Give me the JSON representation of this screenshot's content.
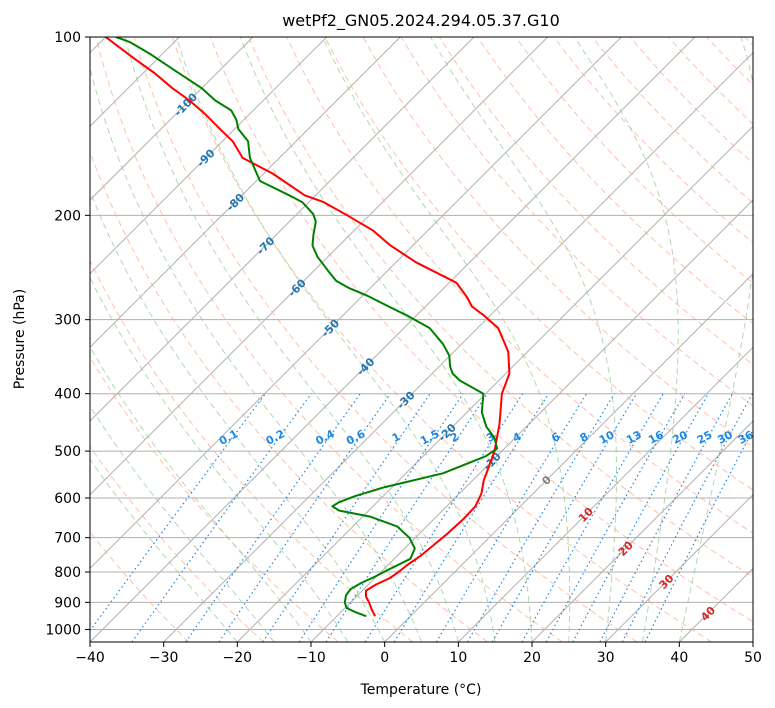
{
  "chart_data": {
    "type": "line",
    "title": "wetPf2_GN05.2024.294.05.37.G10",
    "xlabel": "Temperature (°C)",
    "ylabel": "Pressure (hPa)",
    "xlim": [
      -40,
      50
    ],
    "ylim": [
      1050,
      100
    ],
    "y_scale": "log",
    "x_ticks": [
      -40,
      -30,
      -20,
      -10,
      0,
      10,
      20,
      30,
      40,
      50
    ],
    "y_ticks": [
      100,
      200,
      300,
      400,
      500,
      600,
      700,
      800,
      900,
      1000
    ],
    "grid": true,
    "colors": {
      "temperature": "#ff0000",
      "dewpoint": "#008000",
      "isotherm": "#b0b0b0",
      "dry_adiabat": "#ffa07a",
      "moist_adiabat": "#90c990",
      "mixing_ratio": "#1e88e5",
      "isotherm_label": "#1f77b4",
      "mixing_label": "#1e88e5",
      "warm_label": "#d62728",
      "zero_label": "#808080"
    },
    "series": [
      {
        "key": "temperature",
        "points": [
          [
            -4.8,
            950
          ],
          [
            -6.2,
            925
          ],
          [
            -7.5,
            900
          ],
          [
            -8.7,
            880
          ],
          [
            -9.5,
            860
          ],
          [
            -9.0,
            840
          ],
          [
            -8.0,
            820
          ],
          [
            -7.6,
            800
          ],
          [
            -7.4,
            780
          ],
          [
            -6.8,
            750
          ],
          [
            -6.5,
            720
          ],
          [
            -6.2,
            690
          ],
          [
            -6.0,
            650
          ],
          [
            -6.1,
            620
          ],
          [
            -7.0,
            590
          ],
          [
            -8.5,
            560
          ],
          [
            -9.7,
            530
          ],
          [
            -11.0,
            500
          ],
          [
            -14.0,
            450
          ],
          [
            -17.8,
            400
          ],
          [
            -19.5,
            370
          ],
          [
            -22.6,
            340
          ],
          [
            -27.2,
            310
          ],
          [
            -30.9,
            295
          ],
          [
            -33.7,
            285
          ],
          [
            -35.6,
            275
          ],
          [
            -39.0,
            260
          ],
          [
            -47.3,
            240
          ],
          [
            -53.0,
            225
          ],
          [
            -57.5,
            212
          ],
          [
            -63.0,
            200
          ],
          [
            -68.0,
            190
          ],
          [
            -71.5,
            185
          ],
          [
            -78.8,
            170
          ],
          [
            -85.0,
            160
          ],
          [
            -88.6,
            150
          ],
          [
            -92.0,
            143
          ],
          [
            -96.0,
            135
          ],
          [
            -100.0,
            128
          ],
          [
            -104.0,
            122
          ],
          [
            -108.5,
            115
          ],
          [
            -113.0,
            109
          ],
          [
            -117.6,
            103
          ],
          [
            -120.0,
            100
          ]
        ]
      },
      {
        "key": "dewpoint",
        "points": [
          [
            -6.0,
            950
          ],
          [
            -8.0,
            935
          ],
          [
            -9.8,
            920
          ],
          [
            -10.8,
            900
          ],
          [
            -11.6,
            875
          ],
          [
            -11.8,
            855
          ],
          [
            -11.2,
            835
          ],
          [
            -10.2,
            815
          ],
          [
            -9.4,
            795
          ],
          [
            -7.8,
            760
          ],
          [
            -8.6,
            730
          ],
          [
            -10.8,
            700
          ],
          [
            -14.0,
            670
          ],
          [
            -19.0,
            645
          ],
          [
            -24.0,
            630
          ],
          [
            -25.5,
            620
          ],
          [
            -25.2,
            610
          ],
          [
            -23.8,
            595
          ],
          [
            -21.0,
            575
          ],
          [
            -15.0,
            545
          ],
          [
            -11.5,
            510
          ],
          [
            -11.0,
            495
          ],
          [
            -12.8,
            475
          ],
          [
            -15.4,
            455
          ],
          [
            -18.0,
            430
          ],
          [
            -20.3,
            400
          ],
          [
            -25.3,
            380
          ],
          [
            -27.2,
            370
          ],
          [
            -28.5,
            360
          ],
          [
            -30.1,
            345
          ],
          [
            -32.5,
            330
          ],
          [
            -36.5,
            310
          ],
          [
            -41.0,
            296
          ],
          [
            -45.0,
            285
          ],
          [
            -49.5,
            273
          ],
          [
            -53.0,
            265
          ],
          [
            -55.6,
            258
          ],
          [
            -58.1,
            248
          ],
          [
            -61.4,
            235
          ],
          [
            -63.6,
            225
          ],
          [
            -64.9,
            216
          ],
          [
            -66.4,
            205
          ],
          [
            -67.8,
            199
          ],
          [
            -70.9,
            190
          ],
          [
            -73.6,
            185
          ],
          [
            -79.5,
            175
          ],
          [
            -84.0,
            160
          ],
          [
            -86.5,
            150
          ],
          [
            -89.5,
            143
          ],
          [
            -91.0,
            138
          ],
          [
            -93.0,
            133
          ],
          [
            -96.5,
            128
          ],
          [
            -100.0,
            122
          ],
          [
            -106.0,
            114
          ],
          [
            -111.5,
            107
          ],
          [
            -116.0,
            102
          ],
          [
            -118.6,
            100
          ]
        ]
      }
    ],
    "isotherm_labels": [
      {
        "t": -100,
        "text": "-100"
      },
      {
        "t": -90,
        "text": "-90"
      },
      {
        "t": -80,
        "text": "-80"
      },
      {
        "t": -70,
        "text": "-70"
      },
      {
        "t": -60,
        "text": "-60"
      },
      {
        "t": -50,
        "text": "-50"
      },
      {
        "t": -40,
        "text": "-40"
      },
      {
        "t": -30,
        "text": "-30"
      },
      {
        "t": -20,
        "text": "-20"
      },
      {
        "t": -10,
        "text": "-10"
      }
    ],
    "warm_isotherm_labels": [
      {
        "t": 0,
        "text": "0"
      },
      {
        "t": 10,
        "text": "10"
      },
      {
        "t": 20,
        "text": "20"
      },
      {
        "t": 30,
        "text": "30"
      },
      {
        "t": 40,
        "text": "40"
      }
    ],
    "mixing_ratio_labels": [
      "0.1",
      "0.2",
      "0.4",
      "0.6",
      "1",
      "1.5",
      "2",
      "3",
      "4",
      "6",
      "8",
      "10",
      "13",
      "16",
      "20",
      "25",
      "30",
      "36"
    ],
    "mixing_ratio_values": [
      0.1,
      0.2,
      0.4,
      0.6,
      1,
      1.5,
      2,
      3,
      4,
      6,
      8,
      10,
      13,
      16,
      20,
      25,
      30,
      36
    ],
    "mixing_label_pressure": 480
  }
}
